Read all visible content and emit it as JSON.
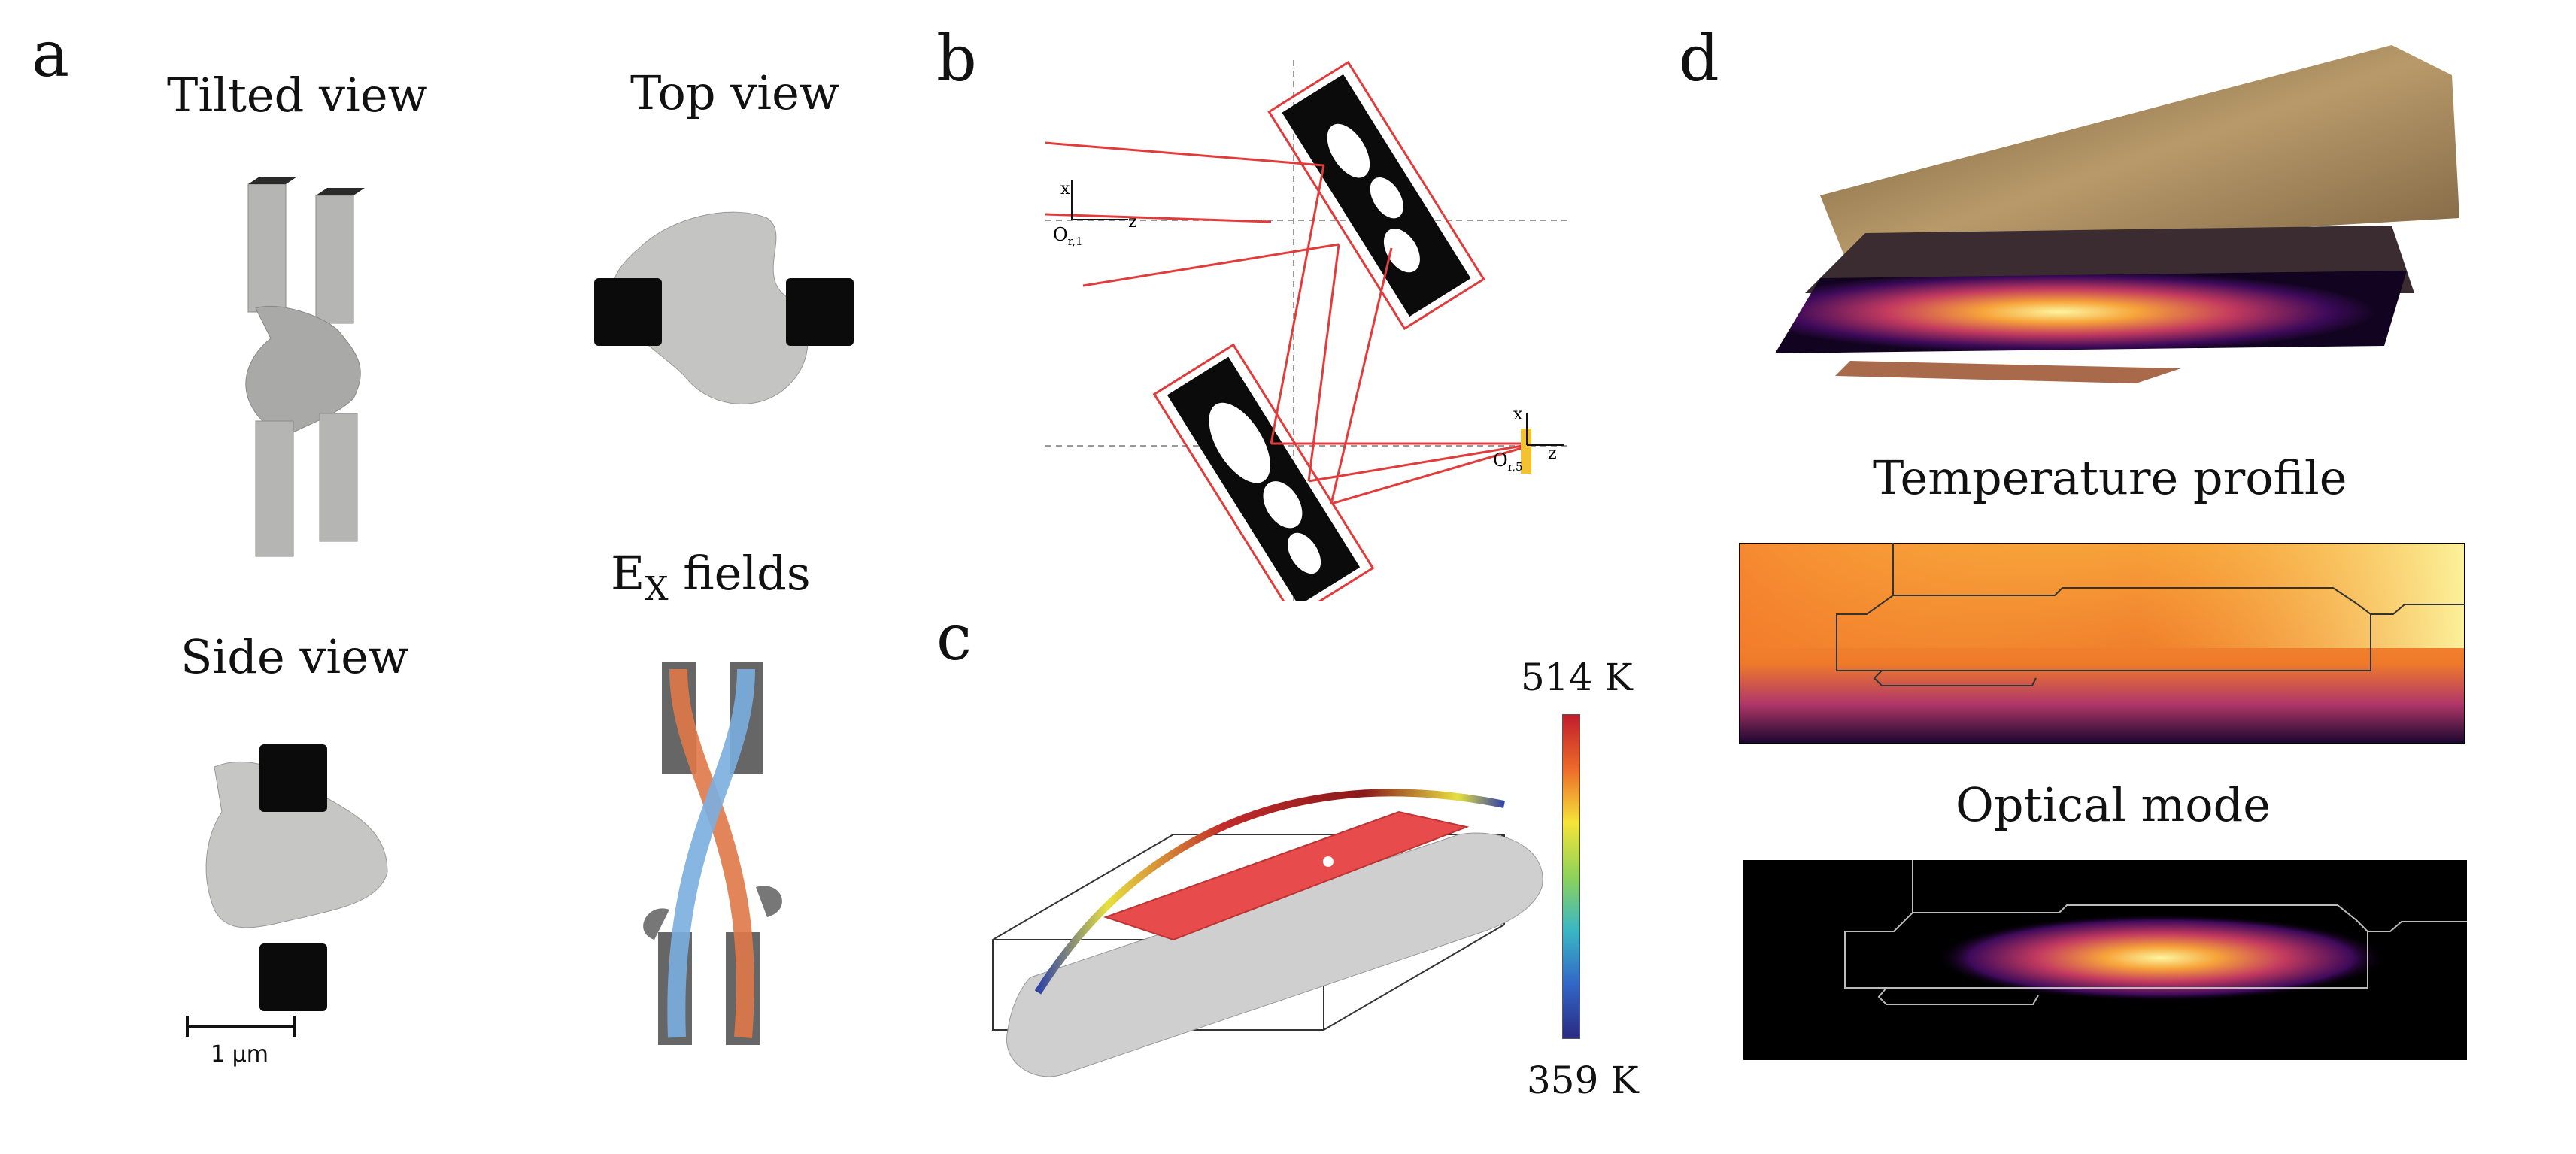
{
  "panels": {
    "a": {
      "label": "a",
      "tilted_title": "Tilted view",
      "top_title": "Top view",
      "side_title": "Side view",
      "fields_title_main": "E",
      "fields_title_sub": "X",
      "fields_title_rest": " fields",
      "scale_label": "1 μm"
    },
    "b": {
      "label": "b",
      "axis_x": "x",
      "axis_z": "z",
      "origin_in": "O",
      "origin_in_sub": "r,1",
      "origin_out": "O",
      "origin_out_sub": "r,5"
    },
    "c": {
      "label": "c",
      "colorbar_max": "514 K",
      "colorbar_min": "359 K"
    },
    "d": {
      "label": "d",
      "temperature_title": "Temperature profile",
      "optical_title": "Optical mode"
    }
  },
  "colors": {
    "structure_gray": "#b9b9b7",
    "pad_black": "#0b0b0b",
    "ray_red": "#e23b3b",
    "heater_red": "#e84b4b",
    "metal_gold": "#a3865c",
    "inferno_hot": "#fcf6a0",
    "inferno_mid": "#f2851e",
    "inferno_low": "#3d0a5a"
  }
}
